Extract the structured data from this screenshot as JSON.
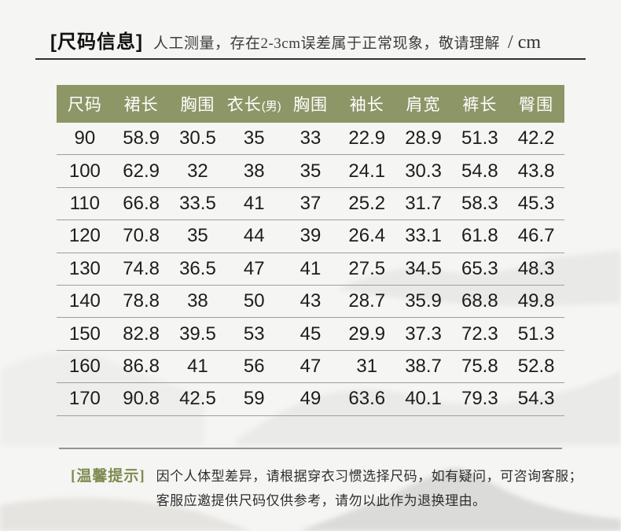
{
  "header": {
    "tag": "[尺码信息]",
    "description": "人工测量，存在2-3cm误差属于正常现象，敬请理解",
    "unit": "/ cm"
  },
  "table": {
    "type": "table",
    "columns": [
      "尺码",
      "裙长",
      "胸围",
      "衣长(男)",
      "胸围",
      "袖长",
      "肩宽",
      "裤长",
      "臀围"
    ],
    "rows": [
      [
        "90",
        "58.9",
        "30.5",
        "35",
        "33",
        "22.9",
        "28.9",
        "51.3",
        "42.2"
      ],
      [
        "100",
        "62.9",
        "32",
        "38",
        "35",
        "24.1",
        "30.3",
        "54.8",
        "43.8"
      ],
      [
        "110",
        "66.8",
        "33.5",
        "41",
        "37",
        "25.2",
        "31.7",
        "58.3",
        "45.3"
      ],
      [
        "120",
        "70.8",
        "35",
        "44",
        "39",
        "26.4",
        "33.1",
        "61.8",
        "46.7"
      ],
      [
        "130",
        "74.8",
        "36.5",
        "47",
        "41",
        "27.5",
        "34.5",
        "65.3",
        "48.3"
      ],
      [
        "140",
        "78.8",
        "38",
        "50",
        "43",
        "28.7",
        "35.9",
        "68.8",
        "49.8"
      ],
      [
        "150",
        "82.8",
        "39.5",
        "53",
        "45",
        "29.9",
        "37.3",
        "72.3",
        "51.3"
      ],
      [
        "160",
        "86.8",
        "41",
        "56",
        "47",
        "31",
        "38.7",
        "75.8",
        "52.8"
      ],
      [
        "170",
        "90.8",
        "42.5",
        "59",
        "49",
        "63.6",
        "40.1",
        "79.3",
        "54.3"
      ]
    ]
  },
  "footer": {
    "tag": "[温馨提示]",
    "line1": "因个人体型差异，请根据穿衣习惯选择尺码，如有疑问，可咨询客服；",
    "line2": "客服应邀提供尺码仅供参考，请勿以此作为退换理由。"
  },
  "colors": {
    "accent_olive": "#8d9666",
    "footer_tag_olive": "#7e8b50",
    "page_background": "#f5f5f4",
    "header_text": "#ffffff",
    "body_text": "#1d1d1d"
  }
}
